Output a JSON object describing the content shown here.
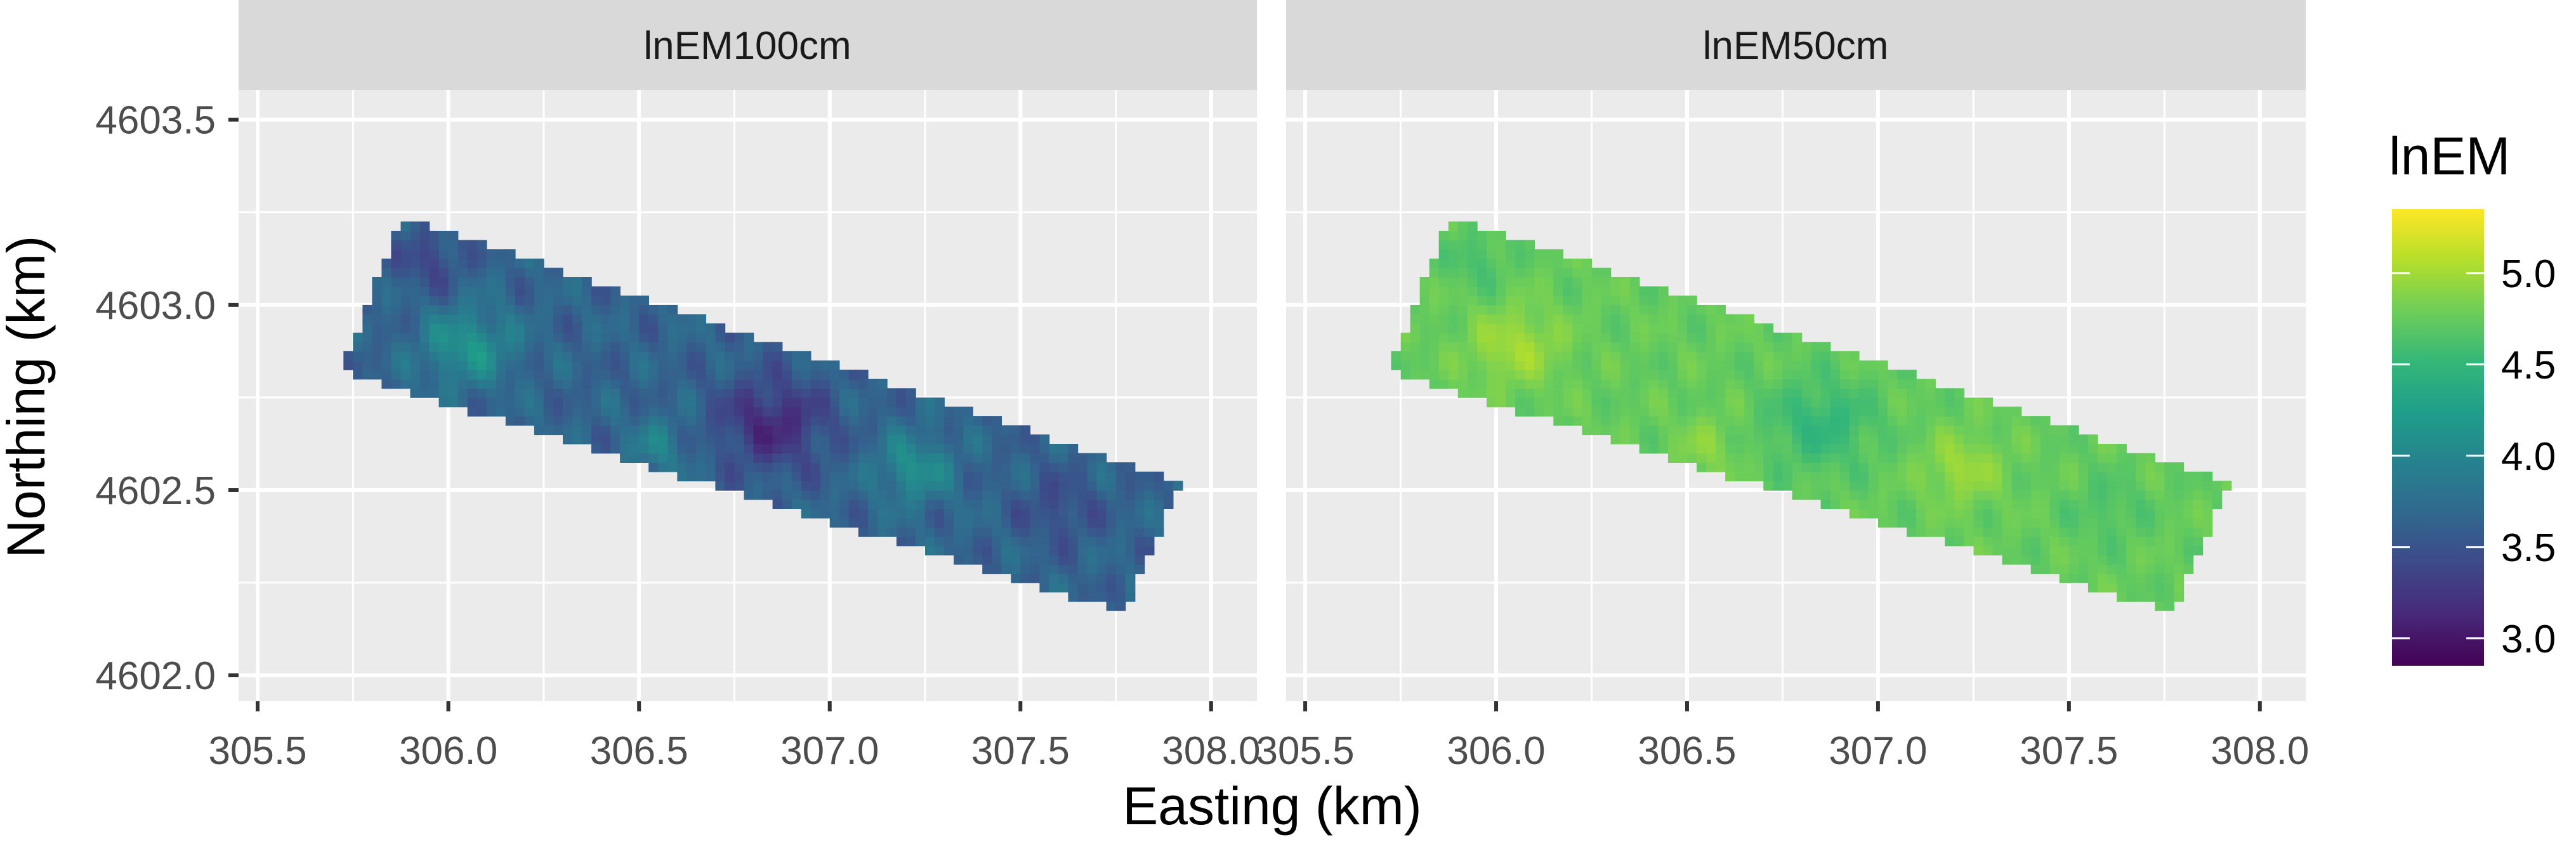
{
  "chart_data": {
    "type": "heatmap",
    "xlabel": "Easting (km)",
    "ylabel": "Northing (km)",
    "xlim": [
      305.45,
      308.12
    ],
    "ylim": [
      4601.93,
      4603.58
    ],
    "x_ticks": [
      "305.5",
      "306.0",
      "306.5",
      "307.0",
      "307.5",
      "308.0"
    ],
    "y_ticks": [
      "4602.0",
      "4602.5",
      "4603.0",
      "4603.5"
    ],
    "grid": true,
    "panels": [
      {
        "strip": "lnEM100cm",
        "mean": 3.65,
        "amplitude": 0.55
      },
      {
        "strip": "lnEM50cm",
        "mean": 4.75,
        "amplitude": 0.28
      }
    ],
    "survey_area_corners_km": {
      "northwest": [
        305.88,
        4603.24
      ],
      "northeast": [
        307.92,
        4602.52
      ],
      "southeast": [
        307.77,
        4602.17
      ],
      "southwest": [
        305.72,
        4602.82
      ]
    },
    "legend": {
      "title": "lnEM",
      "position": "right",
      "range": [
        2.85,
        5.35
      ],
      "ticks": [
        "3.0",
        "3.5",
        "4.0",
        "4.5",
        "5.0"
      ],
      "colormap": "viridis"
    },
    "colors": {
      "panel_background": "#ebebeb",
      "grid_line": "#ffffff",
      "strip_background": "#d9d9d9",
      "viridis": [
        "#440154",
        "#482878",
        "#3e4989",
        "#31688e",
        "#26828e",
        "#1f9e89",
        "#35b779",
        "#6ece58",
        "#b5de2b",
        "#fde725"
      ]
    }
  }
}
